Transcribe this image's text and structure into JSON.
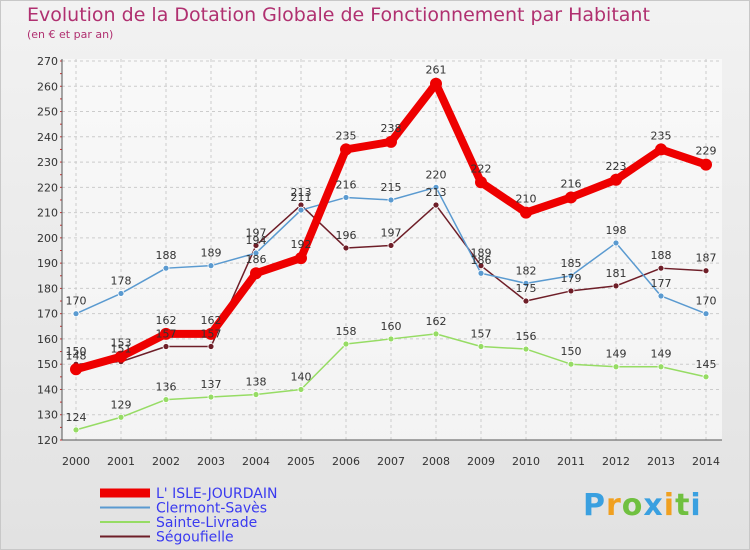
{
  "chart_data": {
    "type": "line",
    "title": "Evolution de la Dotation Globale de Fonctionnement par Habitant",
    "subtitle": "(en € et par an)",
    "x": [
      "2000",
      "2001",
      "2002",
      "2003",
      "2004",
      "2005",
      "2006",
      "2007",
      "2008",
      "2009",
      "2010",
      "2011",
      "2012",
      "2013",
      "2014"
    ],
    "ylim": [
      120,
      270
    ],
    "yticks": [
      120,
      130,
      140,
      150,
      160,
      170,
      180,
      190,
      200,
      210,
      220,
      230,
      240,
      250,
      260,
      270
    ],
    "grid": true,
    "legend_position": "bottom-left",
    "series": [
      {
        "name": "L' ISLE-JOURDAIN",
        "color": "#ee0000",
        "values": [
          148,
          153,
          162,
          162,
          186,
          192,
          235,
          238,
          261,
          222,
          210,
          216,
          223,
          235,
          229
        ]
      },
      {
        "name": "Clermont-Savès",
        "color": "#5a9ad0",
        "values": [
          170,
          178,
          188,
          189,
          194,
          211,
          216,
          215,
          220,
          186,
          182,
          185,
          198,
          177,
          170
        ]
      },
      {
        "name": "Sainte-Livrade",
        "color": "#96dc64",
        "values": [
          124,
          129,
          136,
          137,
          138,
          140,
          158,
          160,
          162,
          157,
          156,
          150,
          149,
          149,
          145
        ]
      },
      {
        "name": "Ségoufielle",
        "color": "#6e1e28",
        "values": [
          150,
          151,
          157,
          157,
          197,
          213,
          196,
          197,
          213,
          189,
          175,
          179,
          181,
          188,
          187
        ]
      }
    ]
  },
  "brand": {
    "letters": [
      "P",
      "r",
      "o",
      "x",
      "i",
      "t",
      "i"
    ],
    "colors": [
      "#3aa0e0",
      "#f0a020",
      "#70c040",
      "#3aa0e0",
      "#f0a020",
      "#70c040",
      "#3aa0e0"
    ]
  }
}
